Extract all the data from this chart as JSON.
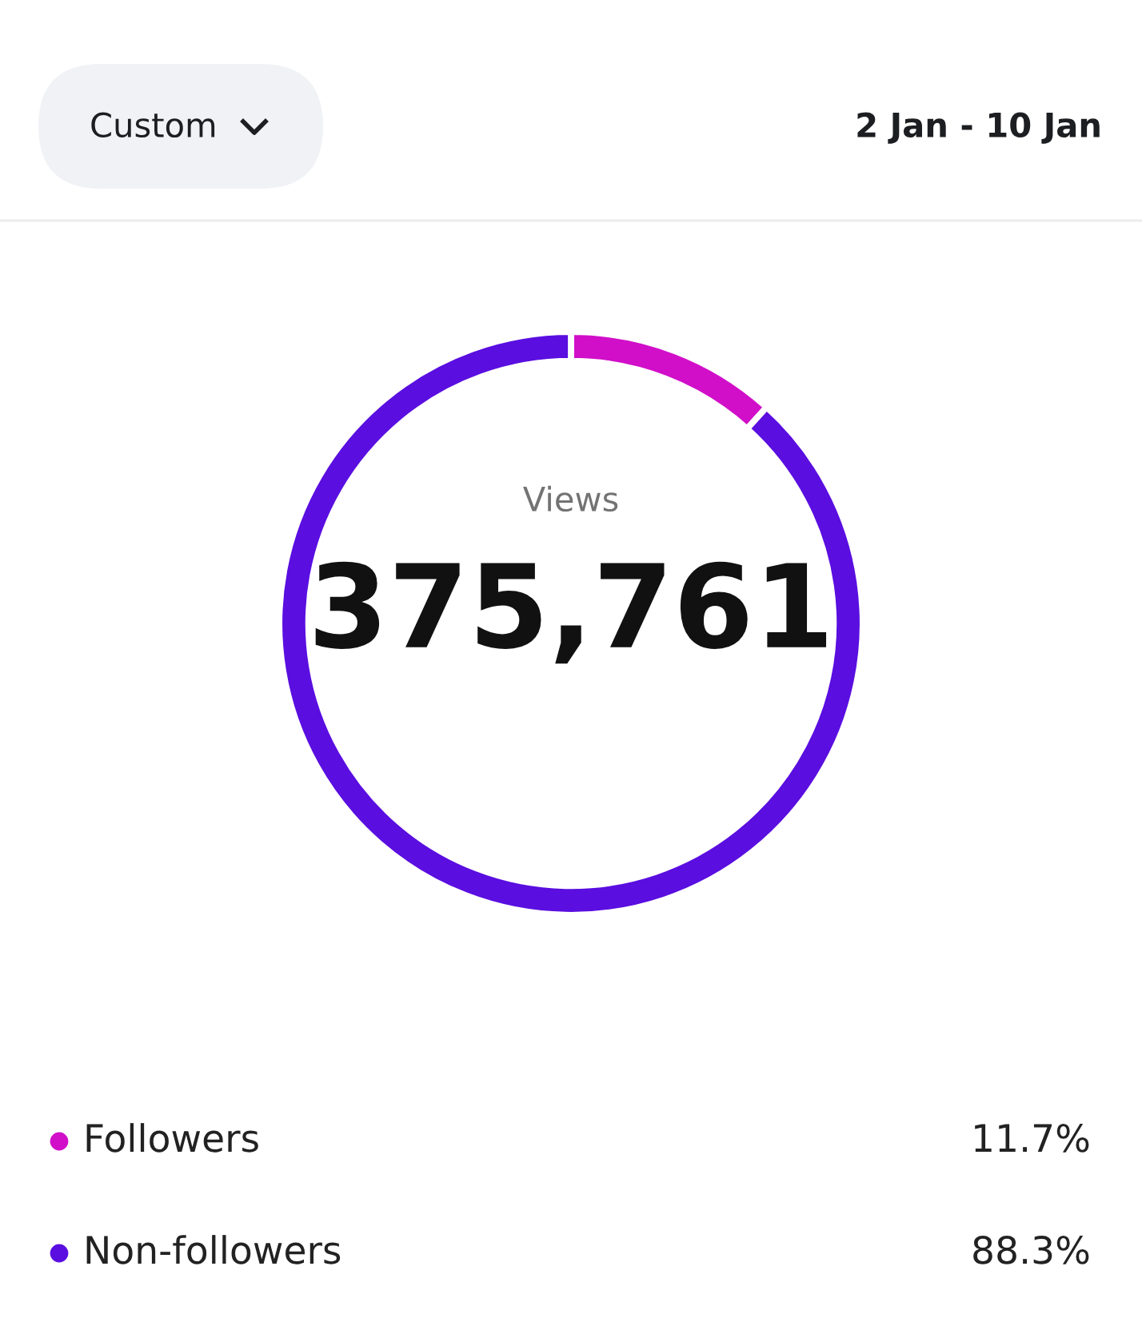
{
  "chart_data": {
    "type": "donut",
    "annotations": [
      "Custom",
      "2 Jan - 10 Jan",
      "Views",
      "375,761"
    ],
    "categories": [
      "Followers",
      "Non-followers"
    ],
    "values": [
      11.7,
      88.3
    ],
    "colors": [
      "#d10fc9",
      "#5a0ee0"
    ],
    "value_labels": [
      "11.7%",
      "88.3%"
    ],
    "legend": "bottom"
  }
}
